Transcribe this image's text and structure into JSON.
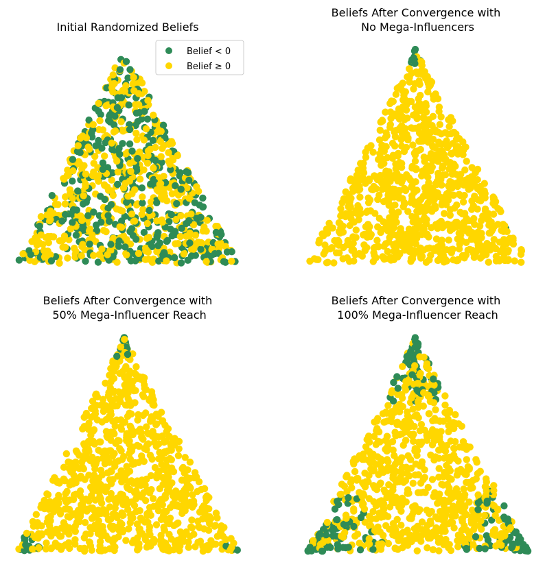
{
  "colors": {
    "negative": "#2e8b57",
    "positive": "#ffd700"
  },
  "chart_data": [
    {
      "type": "scatter",
      "title": "Initial Randomized Beliefs",
      "point_count": 900,
      "fraction_negative": 0.42,
      "legend": {
        "placement": "upper-right",
        "entries": [
          {
            "label": "Belief  <  0",
            "color": "#2e8b57"
          },
          {
            "label": "Belief  ≥  0",
            "color": "#ffd700"
          }
        ]
      },
      "grid": false,
      "axes_visible": false,
      "clusters": []
    },
    {
      "type": "scatter",
      "title": "Beliefs After Convergence with\n No Mega-Influencers",
      "point_count": 900,
      "fraction_negative": 0.0,
      "grid": false,
      "axes_visible": false,
      "clusters": [
        {
          "region": "top-vertex",
          "points": 10
        },
        {
          "region": "right-edge",
          "points": 1
        }
      ]
    },
    {
      "type": "scatter",
      "title": "Beliefs After Convergence with\n 50% Mega-Influencer Reach",
      "point_count": 900,
      "fraction_negative": 0.04,
      "grid": false,
      "axes_visible": false,
      "clusters": [
        {
          "region": "top-vertex",
          "points": 18
        },
        {
          "region": "bottom-left-vertex",
          "points": 14
        },
        {
          "region": "bottom-right-vertex",
          "points": 4
        }
      ]
    },
    {
      "type": "scatter",
      "title": "Beliefs After Convergence with\n 100% Mega-Influencer Reach",
      "point_count": 900,
      "fraction_negative": 0.2,
      "grid": false,
      "axes_visible": false,
      "clusters": [
        {
          "region": "top-vertex",
          "points": 50
        },
        {
          "region": "bottom-left-vertex",
          "points": 70
        },
        {
          "region": "bottom-right-vertex",
          "points": 60
        }
      ]
    }
  ]
}
